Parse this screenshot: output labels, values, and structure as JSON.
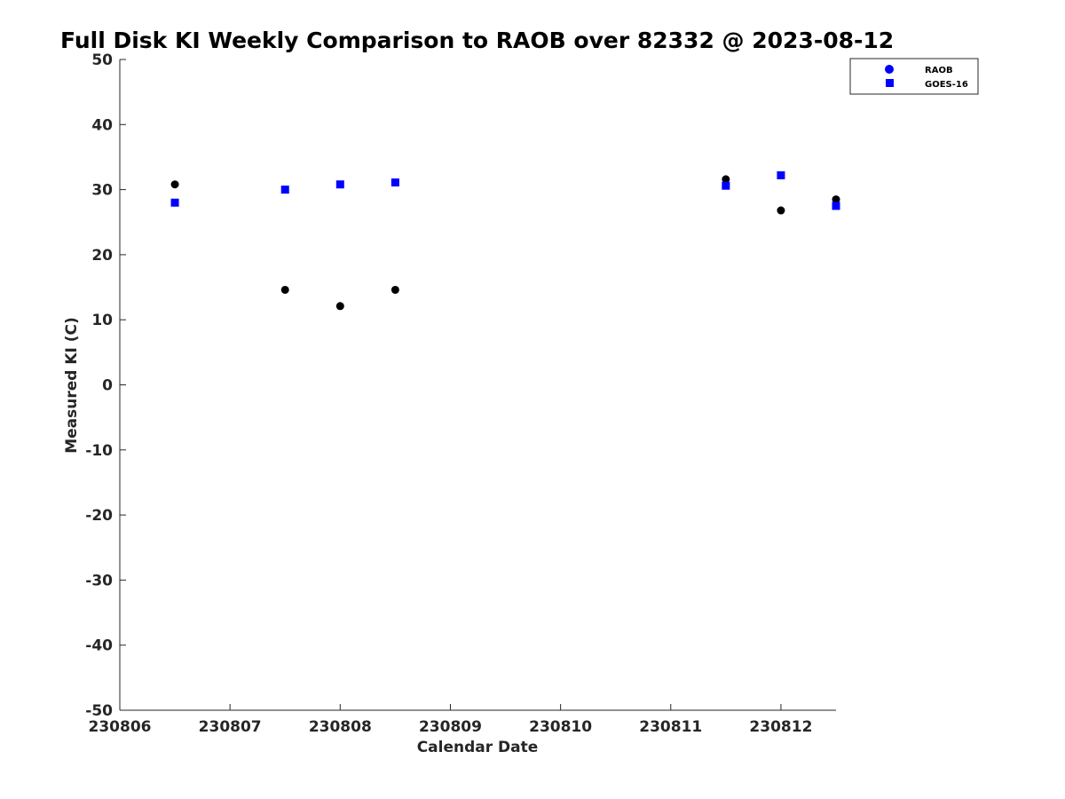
{
  "chart_data": {
    "type": "scatter",
    "title": "Full Disk KI Weekly Comparison to RAOB over 82332 @ 2023-08-12",
    "xlabel": "Calendar Date",
    "ylabel": "Measured KI (C)",
    "xlim": [
      230806,
      230812.5
    ],
    "ylim": [
      -50,
      50
    ],
    "xticks": [
      230806,
      230807,
      230808,
      230809,
      230810,
      230811,
      230812
    ],
    "xtick_labels": [
      "230806",
      "230807",
      "230808",
      "230809",
      "230810",
      "230811",
      "230812"
    ],
    "yticks": [
      -50,
      -40,
      -30,
      -20,
      -10,
      0,
      10,
      20,
      30,
      40,
      50
    ],
    "ytick_labels": [
      "-50",
      "-40",
      "-30",
      "-20",
      "-10",
      "0",
      "10",
      "20",
      "30",
      "40",
      "50"
    ],
    "grid": false,
    "legend_position": "top-right",
    "series": [
      {
        "name": "RAOB",
        "marker": "circle",
        "color": "#000000",
        "legend_color": "#0000ff",
        "x": [
          230806.5,
          230807.5,
          230808.0,
          230808.5,
          230811.5,
          230812.0,
          230812.5
        ],
        "y": [
          30.8,
          14.6,
          12.1,
          14.6,
          31.6,
          26.8,
          28.5
        ]
      },
      {
        "name": "GOES-16",
        "marker": "square",
        "color": "#0000ff",
        "legend_color": "#0000ff",
        "x": [
          230806.5,
          230807.5,
          230808.0,
          230808.5,
          230811.5,
          230812.0,
          230812.5
        ],
        "y": [
          28.0,
          30.0,
          30.8,
          31.1,
          30.6,
          32.2,
          27.5
        ]
      }
    ]
  }
}
